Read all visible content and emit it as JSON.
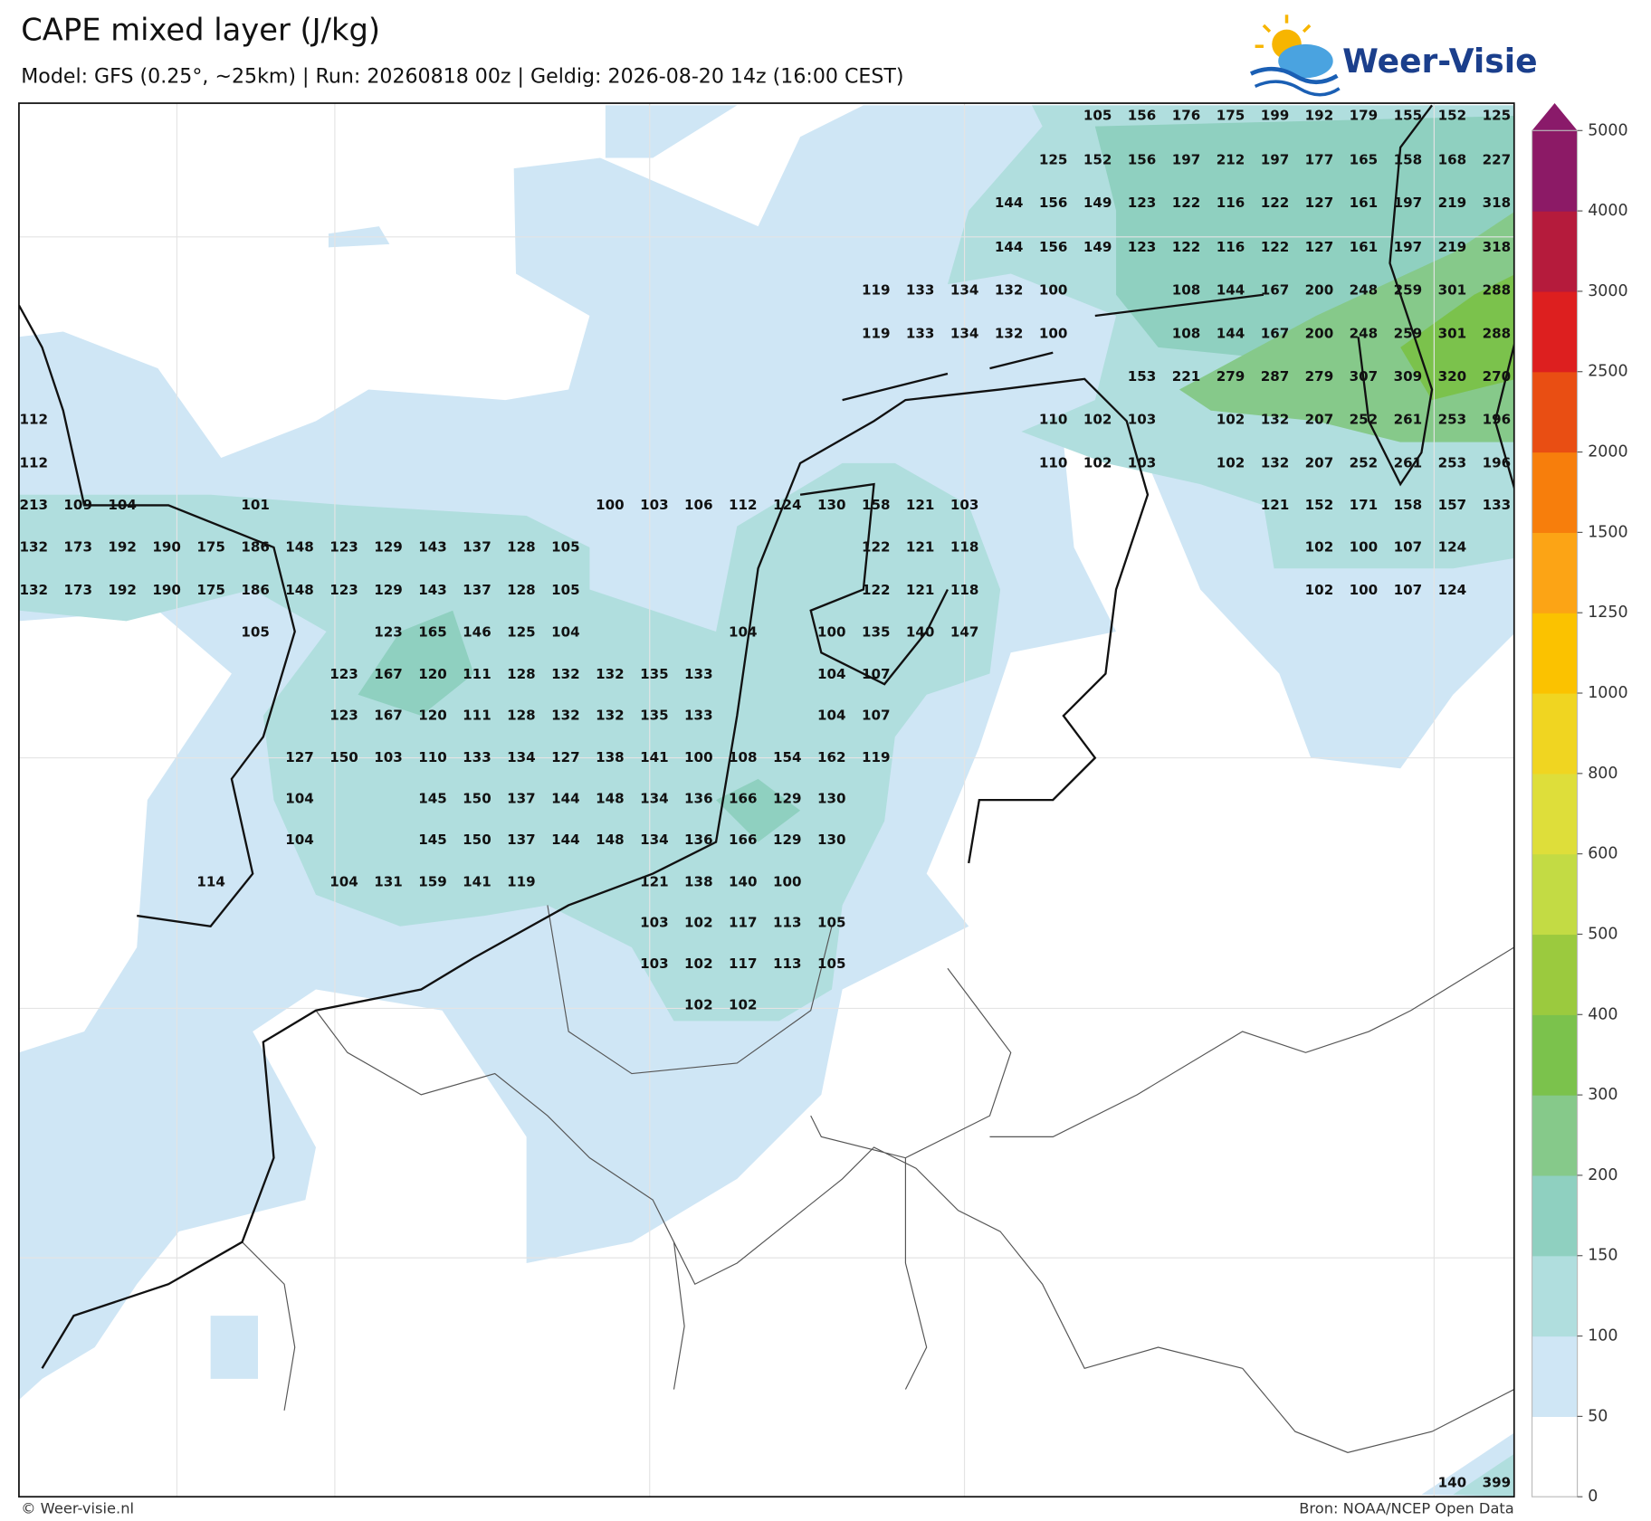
{
  "header": {
    "title": "CAPE mixed layer (J/kg)",
    "subtitle": "Model: GFS (0.25°, ~25km)  |  Run: 20260818 00z  |  Geldig: 2026-08-20 14z (16:00 CEST)",
    "logo": "Weer-Visie"
  },
  "map": {
    "rows": [
      [
        null,
        null,
        null,
        null,
        null,
        null,
        null,
        null,
        null,
        null,
        null,
        null,
        null,
        null,
        null,
        null,
        null,
        null,
        null,
        null,
        null,
        null,
        null,
        null,
        105,
        156,
        176,
        175,
        199,
        192,
        179,
        155,
        152,
        125
      ],
      [
        null,
        null,
        null,
        null,
        null,
        null,
        null,
        null,
        null,
        null,
        null,
        null,
        null,
        null,
        null,
        null,
        null,
        null,
        null,
        null,
        null,
        null,
        null,
        125,
        152,
        156,
        197,
        212,
        197,
        177,
        165,
        158,
        168,
        227
      ],
      [
        null,
        null,
        null,
        null,
        null,
        null,
        null,
        null,
        null,
        null,
        null,
        null,
        null,
        null,
        null,
        null,
        null,
        null,
        null,
        null,
        null,
        null,
        144,
        156,
        149,
        123,
        122,
        116,
        122,
        127,
        161,
        197,
        219,
        318
      ],
      [
        null,
        null,
        null,
        null,
        null,
        null,
        null,
        null,
        null,
        null,
        null,
        null,
        null,
        null,
        null,
        null,
        null,
        null,
        null,
        null,
        null,
        null,
        144,
        156,
        149,
        123,
        122,
        116,
        122,
        127,
        161,
        197,
        219,
        318
      ],
      [
        null,
        null,
        null,
        null,
        null,
        null,
        null,
        null,
        null,
        null,
        null,
        null,
        null,
        null,
        null,
        null,
        null,
        null,
        null,
        119,
        133,
        134,
        132,
        100,
        null,
        null,
        108,
        144,
        167,
        200,
        248,
        259,
        301,
        288
      ],
      [
        null,
        null,
        null,
        null,
        null,
        null,
        null,
        null,
        null,
        null,
        null,
        null,
        null,
        null,
        null,
        null,
        null,
        null,
        null,
        119,
        133,
        134,
        132,
        100,
        null,
        null,
        108,
        144,
        167,
        200,
        248,
        259,
        301,
        288
      ],
      [
        null,
        null,
        null,
        null,
        null,
        null,
        null,
        null,
        null,
        null,
        null,
        null,
        null,
        null,
        null,
        null,
        null,
        null,
        null,
        null,
        null,
        null,
        null,
        null,
        null,
        153,
        221,
        279,
        287,
        279,
        307,
        309,
        320,
        270
      ],
      [
        112,
        null,
        null,
        null,
        null,
        null,
        null,
        null,
        null,
        null,
        null,
        null,
        null,
        null,
        null,
        null,
        null,
        null,
        null,
        null,
        null,
        null,
        null,
        110,
        102,
        103,
        null,
        102,
        132,
        207,
        252,
        261,
        253,
        196
      ],
      [
        112,
        null,
        null,
        null,
        null,
        null,
        null,
        null,
        null,
        null,
        null,
        null,
        null,
        null,
        null,
        null,
        null,
        null,
        null,
        null,
        null,
        null,
        null,
        110,
        102,
        103,
        null,
        102,
        132,
        207,
        252,
        261,
        253,
        196
      ],
      [
        213,
        109,
        104,
        null,
        null,
        101,
        null,
        null,
        null,
        null,
        null,
        null,
        null,
        100,
        103,
        106,
        112,
        124,
        130,
        158,
        121,
        103,
        null,
        null,
        null,
        null,
        null,
        null,
        121,
        152,
        171,
        158,
        157,
        133
      ],
      [
        132,
        173,
        192,
        190,
        175,
        186,
        148,
        123,
        129,
        143,
        137,
        128,
        105,
        null,
        null,
        null,
        null,
        null,
        null,
        122,
        121,
        118,
        null,
        null,
        null,
        null,
        null,
        null,
        null,
        102,
        100,
        107,
        124
      ],
      [
        132,
        173,
        192,
        190,
        175,
        186,
        148,
        123,
        129,
        143,
        137,
        128,
        105,
        null,
        null,
        null,
        null,
        null,
        null,
        122,
        121,
        118,
        null,
        null,
        null,
        null,
        null,
        null,
        null,
        102,
        100,
        107,
        124
      ],
      [
        null,
        null,
        null,
        null,
        null,
        105,
        null,
        null,
        123,
        165,
        146,
        125,
        104,
        null,
        null,
        null,
        104,
        null,
        100,
        135,
        140,
        147
      ],
      [
        null,
        null,
        null,
        null,
        null,
        null,
        null,
        123,
        167,
        120,
        111,
        128,
        132,
        132,
        135,
        133,
        null,
        null,
        104,
        107
      ],
      [
        null,
        null,
        null,
        null,
        null,
        null,
        null,
        123,
        167,
        120,
        111,
        128,
        132,
        132,
        135,
        133,
        null,
        null,
        104,
        107
      ],
      [
        null,
        null,
        null,
        null,
        null,
        null,
        127,
        150,
        103,
        110,
        133,
        134,
        127,
        138,
        141,
        100,
        108,
        154,
        162,
        119
      ],
      [
        null,
        null,
        null,
        null,
        null,
        null,
        104,
        null,
        null,
        145,
        150,
        137,
        144,
        148,
        134,
        136,
        166,
        129,
        130
      ],
      [
        null,
        null,
        null,
        null,
        null,
        null,
        104,
        null,
        null,
        145,
        150,
        137,
        144,
        148,
        134,
        136,
        166,
        129,
        130
      ],
      [
        null,
        null,
        null,
        null,
        114,
        null,
        null,
        104,
        131,
        159,
        141,
        119,
        null,
        null,
        121,
        138,
        140,
        100
      ],
      [
        null,
        null,
        null,
        null,
        null,
        null,
        null,
        null,
        null,
        null,
        null,
        null,
        null,
        null,
        103,
        102,
        117,
        113,
        105
      ],
      [
        null,
        null,
        null,
        null,
        null,
        null,
        null,
        null,
        null,
        null,
        null,
        null,
        null,
        null,
        103,
        102,
        117,
        113,
        105
      ],
      [
        null,
        null,
        null,
        null,
        null,
        null,
        null,
        null,
        null,
        null,
        null,
        null,
        null,
        null,
        null,
        102,
        102
      ],
      [
        null,
        null,
        null,
        null,
        null,
        null,
        null,
        null,
        null,
        null,
        null,
        null,
        null,
        null,
        null,
        null,
        null,
        null,
        null,
        null,
        null,
        null,
        null,
        null,
        null,
        null,
        null,
        null,
        null,
        null,
        null,
        null,
        140,
        399
      ]
    ]
  },
  "colorbar": {
    "levels": [
      0,
      50,
      100,
      150,
      200,
      300,
      400,
      500,
      600,
      800,
      1000,
      1250,
      1500,
      2000,
      2500,
      3000,
      4000,
      5000
    ],
    "colors": [
      "#ffffff",
      "#cfe6f5",
      "#b0dede",
      "#8fd0c0",
      "#86c98a",
      "#7bc24c",
      "#9bca3e",
      "#c3db44",
      "#dede3a",
      "#f0d521",
      "#fbc200",
      "#fca415",
      "#f77e0c",
      "#e94e13",
      "#dd1f1f",
      "#b51b3c",
      "#8c1a66"
    ],
    "extend_color": "#8a1a6a"
  },
  "footer": {
    "left": "© Weer-visie.nl",
    "right": "Bron: NOAA/NCEP Open Data"
  }
}
